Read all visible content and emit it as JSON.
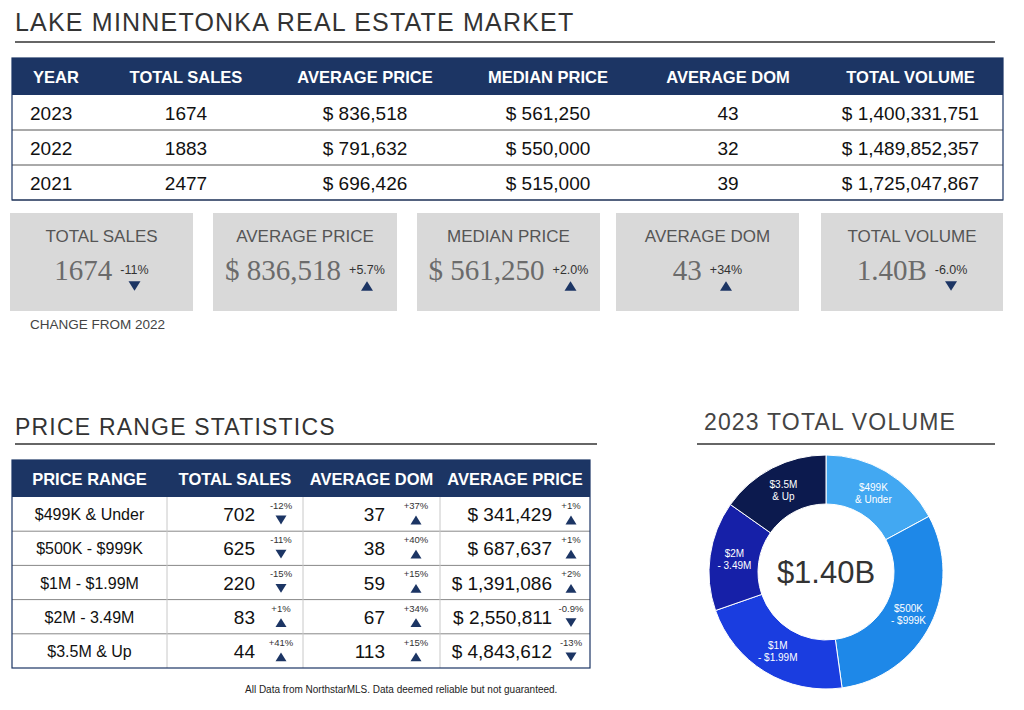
{
  "header": {
    "title": "LAKE MINNETONKA REAL ESTATE MARKET"
  },
  "summary_table": {
    "columns": [
      "YEAR",
      "TOTAL SALES",
      "AVERAGE PRICE",
      "MEDIAN PRICE",
      "AVERAGE DOM",
      "TOTAL VOLUME"
    ],
    "rows": [
      [
        "2023",
        "1674",
        "$ 836,518",
        "$ 561,250",
        "43",
        "$ 1,400,331,751"
      ],
      [
        "2022",
        "1883",
        "$ 791,632",
        "$ 550,000",
        "32",
        "$ 1,489,852,357"
      ],
      [
        "2021",
        "2477",
        "$ 696,426",
        "$ 515,000",
        "39",
        "$ 1,725,047,867"
      ]
    ]
  },
  "change_cards": {
    "cards": [
      {
        "label": "TOTAL SALES",
        "value": "1674",
        "change": "-11%"
      },
      {
        "label": "AVERAGE PRICE",
        "value": "$ 836,518",
        "change": "+5.7%"
      },
      {
        "label": "MEDIAN PRICE",
        "value": "$ 561,250",
        "change": "+2.0%"
      },
      {
        "label": "AVERAGE DOM",
        "value": "43",
        "change": "+34%"
      },
      {
        "label": "TOTAL VOLUME",
        "value": "1.40B",
        "change": "-6.0%"
      }
    ],
    "caption": "CHANGE FROM 2022"
  },
  "price_range": {
    "title": "PRICE RANGE STATISTICS",
    "columns": [
      "PRICE RANGE",
      "TOTAL SALES",
      "AVERAGE DOM",
      "AVERAGE PRICE"
    ],
    "rows": [
      [
        "$499K & Under",
        {
          "value": "702",
          "change": "-12%"
        },
        {
          "value": "37",
          "change": "+37%"
        },
        {
          "value": "$ 341,429",
          "change": "+1%"
        }
      ],
      [
        "$500K - $999K",
        {
          "value": "625",
          "change": "-11%"
        },
        {
          "value": "38",
          "change": "+40%"
        },
        {
          "value": "$ 687,637",
          "change": "+1%"
        }
      ],
      [
        "$1M - $1.99M",
        {
          "value": "220",
          "change": "-15%"
        },
        {
          "value": "59",
          "change": "+15%"
        },
        {
          "value": "$ 1,391,086",
          "change": "+2%"
        }
      ],
      [
        "$2M - 3.49M",
        {
          "value": "83",
          "change": "+1%"
        },
        {
          "value": "67",
          "change": "+34%"
        },
        {
          "value": "$ 2,550,811",
          "change": "-0.9%"
        }
      ],
      [
        "$3.5M & Up",
        {
          "value": "44",
          "change": "+41%"
        },
        {
          "value": "113",
          "change": "+15%"
        },
        {
          "value": "$ 4,843,612",
          "change": "-13%"
        }
      ]
    ]
  },
  "footnote": "All Data from NorthstarMLS. Data deemed reliable but not guaranteed.",
  "chart_data": {
    "type": "pie",
    "title": "2023 TOTAL VOLUME",
    "center_label": "$1.40B",
    "categories": [
      "$499K & Under",
      "$500K - $999K",
      "$1M - $1.99M",
      "$2M - 3.49M",
      "$3.5M & Up"
    ],
    "values": [
      239683158,
      429773125,
      306038920,
      211717313,
      213118928
    ],
    "colors": [
      "#42a8f2",
      "#1e88e8",
      "#1a3de0",
      "#1620a8",
      "#0c1a4e"
    ]
  }
}
